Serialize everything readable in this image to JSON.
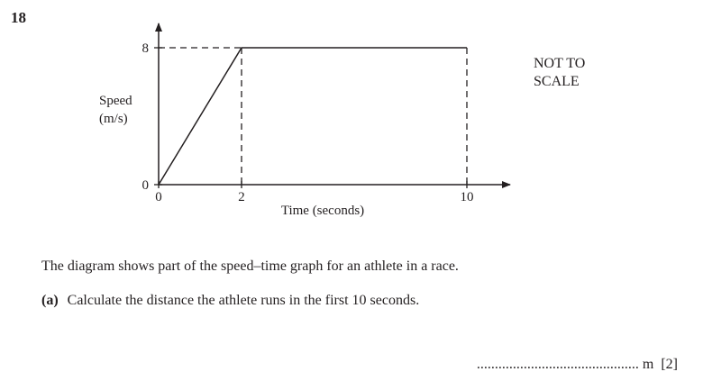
{
  "question": {
    "number": "18",
    "description": "The diagram shows part of the speed–time graph for an athlete in a race.",
    "part_a_label": "(a)",
    "part_a_text": "Calculate the distance the athlete runs in the first 10 seconds.",
    "answer_dots": ".............................................",
    "answer_unit": "m",
    "marks": "[2]"
  },
  "chart_data": {
    "type": "line",
    "title": "",
    "xlabel": "Time (seconds)",
    "ylabel_line1": "Speed",
    "ylabel_line2": "(m/s)",
    "note_line1": "NOT TO",
    "note_line2": "SCALE",
    "x_ticks": [
      "0",
      "2",
      "10"
    ],
    "y_ticks": [
      "0",
      "8"
    ],
    "series": [
      {
        "x": [
          0,
          2,
          10
        ],
        "y": [
          0,
          8,
          8
        ]
      }
    ],
    "guide_lines": "dashed"
  }
}
